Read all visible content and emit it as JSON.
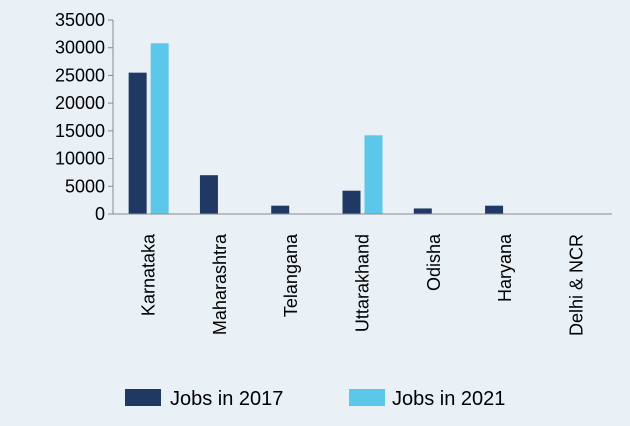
{
  "colors": {
    "background": "#e9f1f7",
    "series_2017": "#1f3864",
    "series_2021": "#5bc8ea",
    "axis": "#8a8a8a"
  },
  "chart_data": {
    "type": "bar",
    "title": "",
    "xlabel": "",
    "ylabel": "",
    "categories": [
      "Karnataka",
      "Maharashtra",
      "Telangana",
      "Uttarakhand",
      "Odisha",
      "Haryana",
      "Delhi & NCR"
    ],
    "series": [
      {
        "name": "Jobs in 2017",
        "values": [
          25500,
          7000,
          1500,
          4200,
          1000,
          1500,
          0
        ]
      },
      {
        "name": "Jobs in 2021",
        "values": [
          30800,
          0,
          0,
          14200,
          0,
          0,
          0
        ]
      }
    ],
    "ylim": [
      0,
      35000
    ],
    "yticks": [
      0,
      5000,
      10000,
      15000,
      20000,
      25000,
      30000,
      35000
    ],
    "ytick_labels": [
      "0",
      "5000",
      "10000",
      "15000",
      "20000",
      "25000",
      "30000",
      "35000"
    ],
    "grid": false,
    "legend_position": "bottom"
  }
}
